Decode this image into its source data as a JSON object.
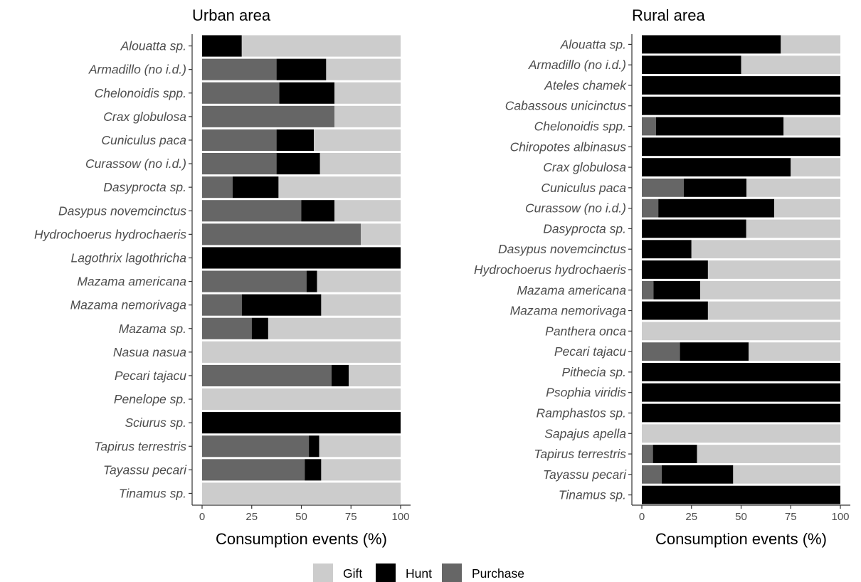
{
  "chart_data": [
    {
      "type": "bar",
      "orientation": "horizontal",
      "stacked": true,
      "title": "Urban area",
      "xlabel": "Consumption events (%)",
      "ylabel": "",
      "xlim": [
        0,
        100
      ],
      "xticks": [
        0,
        25,
        50,
        75,
        100
      ],
      "categories": [
        "Alouatta sp.",
        "Armadillo (no i.d.)",
        "Chelonoidis spp.",
        "Crax globulosa",
        "Cuniculus paca",
        "Curassow (no i.d.)",
        "Dasyprocta sp.",
        "Dasypus novemcinctus",
        "Hydrochoerus hydrochaeris",
        "Lagothrix lagothricha",
        "Mazama americana",
        "Mazama nemorivaga",
        "Mazama sp.",
        "Nasua nasua",
        "Pecari tajacu",
        "Penelope sp.",
        "Sciurus sp.",
        "Tapirus terrestris",
        "Tayassu pecari",
        "Tinamus sp."
      ],
      "series": [
        {
          "name": "Purchase",
          "values": [
            0,
            37.5,
            38.9,
            66.7,
            37.5,
            37.5,
            15.4,
            50,
            80,
            0,
            52.6,
            20,
            25,
            0,
            65.2,
            0,
            0,
            53.8,
            51.7,
            0
          ]
        },
        {
          "name": "Hunt",
          "values": [
            20,
            25,
            27.8,
            0,
            18.8,
            21.9,
            23.1,
            16.7,
            0,
            100,
            5.3,
            40,
            8.3,
            0,
            8.7,
            0,
            100,
            5.2,
            8.3,
            0
          ]
        },
        {
          "name": "Gift",
          "values": [
            80,
            37.5,
            33.3,
            33.3,
            43.7,
            40.6,
            61.5,
            33.3,
            20,
            0,
            42.1,
            40,
            66.7,
            100,
            26.1,
            100,
            0,
            41,
            40,
            100
          ]
        }
      ]
    },
    {
      "type": "bar",
      "orientation": "horizontal",
      "stacked": true,
      "title": "Rural area",
      "xlabel": "Consumption events (%)",
      "ylabel": "",
      "xlim": [
        0,
        100
      ],
      "xticks": [
        0,
        25,
        50,
        75,
        100
      ],
      "categories": [
        "Alouatta sp.",
        "Armadillo (no i.d.)",
        "Ateles chamek",
        "Cabassous unicinctus",
        "Chelonoidis spp.",
        "Chiropotes albinasus",
        "Crax globulosa",
        "Cuniculus paca",
        "Curassow (no i.d.)",
        "Dasyprocta sp.",
        "Dasypus novemcinctus",
        "Hydrochoerus hydrochaeris",
        "Mazama americana",
        "Mazama nemorivaga",
        "Panthera onca",
        "Pecari tajacu",
        "Pithecia sp.",
        "Psophia viridis",
        "Ramphastos sp.",
        "Sapajus apella",
        "Tapirus terrestris",
        "Tayassu pecari",
        "Tinamus sp."
      ],
      "series": [
        {
          "name": "Purchase",
          "values": [
            0,
            0,
            0,
            0,
            7.1,
            0,
            0,
            21.1,
            8.3,
            0,
            0,
            0,
            5.9,
            0,
            0,
            19.2,
            0,
            0,
            0,
            0,
            5.6,
            10,
            0
          ]
        },
        {
          "name": "Hunt",
          "values": [
            70,
            50,
            100,
            100,
            64.3,
            100,
            75,
            31.6,
            58.4,
            52.6,
            25,
            33.3,
            23.5,
            33.3,
            0,
            34.6,
            100,
            100,
            100,
            0,
            22.2,
            36,
            100
          ]
        },
        {
          "name": "Gift",
          "values": [
            30,
            50,
            0,
            0,
            28.6,
            0,
            25,
            47.3,
            33.3,
            47.4,
            75,
            66.7,
            70.6,
            66.7,
            100,
            46.2,
            0,
            0,
            0,
            100,
            72.2,
            54,
            0
          ]
        }
      ]
    }
  ],
  "legend": {
    "items": [
      {
        "name": "Gift",
        "color": "#cccccc"
      },
      {
        "name": "Hunt",
        "color": "#000000"
      },
      {
        "name": "Purchase",
        "color": "#666666"
      }
    ]
  },
  "colors": {
    "Gift": "#cccccc",
    "Hunt": "#000000",
    "Purchase": "#666666"
  }
}
